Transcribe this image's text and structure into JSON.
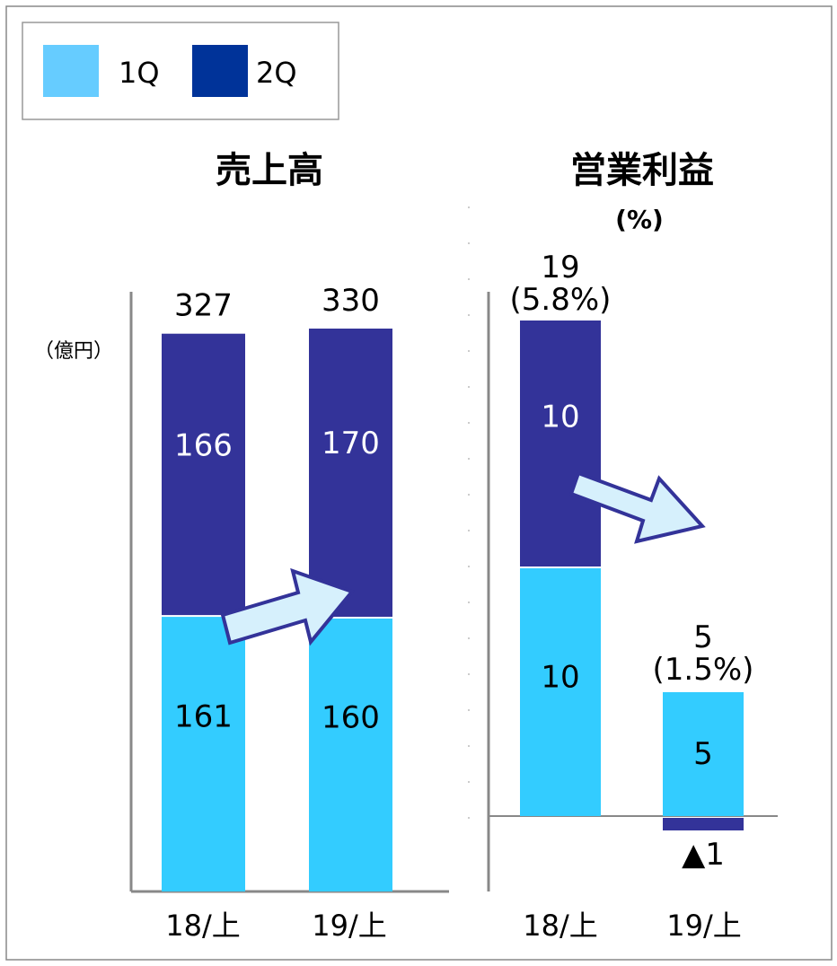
{
  "colors": {
    "q1": "#33ccff",
    "q2": "#333399",
    "legend_q1": "#66ccff",
    "legend_q2": "#003399",
    "arrow_fill": "#d6f0fc",
    "arrow_stroke": "#333399",
    "axis": "#888888"
  },
  "legend": {
    "q1_label": "1Q",
    "q2_label": "2Q"
  },
  "chart_data": [
    {
      "type": "bar",
      "stacked": true,
      "title": "売上高",
      "unit_label": "（億円）",
      "categories": [
        "18/上",
        "19/上"
      ],
      "series": [
        {
          "name": "1Q",
          "values": [
            161,
            160
          ]
        },
        {
          "name": "2Q",
          "values": [
            166,
            170
          ]
        }
      ],
      "totals": [
        "327",
        "330"
      ],
      "value_labels": {
        "1Q": [
          "161",
          "160"
        ],
        "2Q": [
          "166",
          "170"
        ]
      },
      "ylim": [
        0,
        340
      ],
      "grid": false,
      "legend_position": "top-left"
    },
    {
      "type": "bar",
      "stacked": true,
      "title": "営業利益",
      "subtitle": "(%)",
      "categories": [
        "18/上",
        "19/上"
      ],
      "series": [
        {
          "name": "1Q",
          "values": [
            10,
            5
          ]
        },
        {
          "name": "2Q",
          "values": [
            10,
            -1
          ]
        }
      ],
      "totals": [
        "19",
        "5"
      ],
      "total_margins": [
        "(5.8%)",
        "(1.5%)"
      ],
      "value_labels": {
        "1Q": [
          "10",
          "5"
        ],
        "2Q": [
          "10",
          "▲1"
        ]
      },
      "ylim": [
        -3,
        20
      ],
      "grid": false
    }
  ]
}
